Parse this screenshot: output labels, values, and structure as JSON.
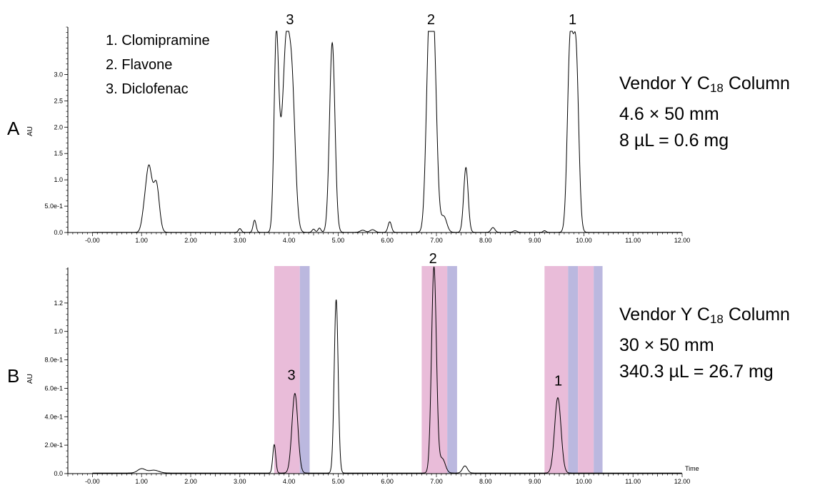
{
  "chart_data": [
    {
      "type": "line",
      "panel": "A",
      "ylabel": "AU",
      "xlim": [
        -0.5,
        12.0
      ],
      "ylim": [
        0.0,
        3.9
      ],
      "x_ticks": [
        "-0.00",
        "1.00",
        "2.00",
        "3.00",
        "4.00",
        "5.00",
        "6.00",
        "7.00",
        "8.00",
        "9.00",
        "10.00",
        "11.00",
        "12.00"
      ],
      "y_ticks": [
        {
          "value": 0.0,
          "label": "0.0"
        },
        {
          "value": 0.5,
          "label": "5.0e-1"
        },
        {
          "value": 1.0,
          "label": "1.0"
        },
        {
          "value": 1.5,
          "label": "1.5"
        },
        {
          "value": 2.0,
          "label": "2.0"
        },
        {
          "value": 2.5,
          "label": "2.5"
        },
        {
          "value": 3.0,
          "label": "3.0"
        }
      ],
      "peaks": [
        {
          "x": 1.05,
          "h": 0.3,
          "w": 0.05
        },
        {
          "x": 1.15,
          "h": 1.2,
          "w": 0.06
        },
        {
          "x": 1.3,
          "h": 0.92,
          "w": 0.06
        },
        {
          "x": 3.0,
          "h": 0.07,
          "w": 0.03
        },
        {
          "x": 3.3,
          "h": 0.23,
          "w": 0.03
        },
        {
          "x": 3.74,
          "h": 3.55,
          "w": 0.045
        },
        {
          "x": 3.82,
          "h": 1.0,
          "w": 0.05
        },
        {
          "x": 3.93,
          "h": 2.9,
          "w": 0.06
        },
        {
          "x": 4.05,
          "h": 3.0,
          "w": 0.07
        },
        {
          "x": 4.5,
          "h": 0.06,
          "w": 0.03
        },
        {
          "x": 4.62,
          "h": 0.08,
          "w": 0.03
        },
        {
          "x": 4.88,
          "h": 3.6,
          "w": 0.055
        },
        {
          "x": 5.5,
          "h": 0.04,
          "w": 0.05
        },
        {
          "x": 5.7,
          "h": 0.05,
          "w": 0.05
        },
        {
          "x": 6.05,
          "h": 0.2,
          "w": 0.035
        },
        {
          "x": 6.85,
          "h": 3.45,
          "w": 0.06
        },
        {
          "x": 6.95,
          "h": 3.2,
          "w": 0.06
        },
        {
          "x": 7.15,
          "h": 0.3,
          "w": 0.06
        },
        {
          "x": 7.6,
          "h": 1.23,
          "w": 0.045
        },
        {
          "x": 8.15,
          "h": 0.09,
          "w": 0.04
        },
        {
          "x": 8.6,
          "h": 0.03,
          "w": 0.04
        },
        {
          "x": 9.2,
          "h": 0.03,
          "w": 0.03
        },
        {
          "x": 9.72,
          "h": 3.5,
          "w": 0.055
        },
        {
          "x": 9.84,
          "h": 3.35,
          "w": 0.055
        }
      ],
      "clip_max": 3.82,
      "peak_labels": [
        {
          "text": "3",
          "x": 4.02
        },
        {
          "text": "2",
          "x": 6.89
        },
        {
          "text": "1",
          "x": 9.77
        }
      ]
    },
    {
      "type": "line",
      "panel": "B",
      "ylabel": "AU",
      "xlabel": "Time",
      "xlim": [
        -0.5,
        12.0
      ],
      "ylim": [
        0.0,
        1.45
      ],
      "x_ticks": [
        "-0.00",
        "1.00",
        "2.00",
        "3.00",
        "4.00",
        "5.00",
        "6.00",
        "7.00",
        "8.00",
        "9.00",
        "10.00",
        "11.00",
        "12.00"
      ],
      "y_ticks": [
        {
          "value": 0.0,
          "label": "0.0"
        },
        {
          "value": 0.2,
          "label": "2.0e-1"
        },
        {
          "value": 0.4,
          "label": "4.0e-1"
        },
        {
          "value": 0.6,
          "label": "6.0e-1"
        },
        {
          "value": 0.8,
          "label": "8.0e-1"
        },
        {
          "value": 1.0,
          "label": "1.0"
        },
        {
          "value": 1.2,
          "label": "1.2"
        }
      ],
      "fractions": [
        {
          "start": 3.7,
          "end": 4.22,
          "color": "#e9bcd9"
        },
        {
          "start": 4.22,
          "end": 4.42,
          "color": "#bbb8df"
        },
        {
          "start": 6.7,
          "end": 7.22,
          "color": "#e9bcd9"
        },
        {
          "start": 7.22,
          "end": 7.42,
          "color": "#bbb8df"
        },
        {
          "start": 9.2,
          "end": 9.68,
          "color": "#e9bcd9"
        },
        {
          "start": 9.68,
          "end": 9.88,
          "color": "#bbb8df"
        },
        {
          "start": 9.88,
          "end": 10.2,
          "color": "#e9bcd9"
        },
        {
          "start": 10.2,
          "end": 10.38,
          "color": "#bbb8df"
        }
      ],
      "peaks": [
        {
          "x": 1.0,
          "h": 0.03,
          "w": 0.08
        },
        {
          "x": 1.25,
          "h": 0.02,
          "w": 0.1
        },
        {
          "x": 3.7,
          "h": 0.2,
          "w": 0.03
        },
        {
          "x": 4.12,
          "h": 0.56,
          "w": 0.06
        },
        {
          "x": 4.96,
          "h": 1.22,
          "w": 0.04
        },
        {
          "x": 6.95,
          "h": 1.45,
          "w": 0.05
        },
        {
          "x": 7.12,
          "h": 0.1,
          "w": 0.06
        },
        {
          "x": 7.58,
          "h": 0.05,
          "w": 0.05
        },
        {
          "x": 9.47,
          "h": 0.53,
          "w": 0.065
        }
      ],
      "clip_max": 1.48,
      "peak_labels": [
        {
          "text": "3",
          "x": 4.05,
          "y": 0.63
        },
        {
          "text": "2",
          "x": 6.93,
          "y": 1.45
        },
        {
          "text": "1",
          "x": 9.48,
          "y": 0.59
        }
      ]
    }
  ],
  "panels": {
    "a": {
      "letter": "A",
      "au": "AU",
      "legend": [
        "1. Clomipramine",
        "2. Flavone",
        "3. Diclofenac"
      ],
      "column_prefix": "Vendor Y C",
      "column_sub": "18",
      "column_suffix": " Column",
      "dims": "4.6 × 50 mm",
      "load": "8 µL = 0.6 mg"
    },
    "b": {
      "letter": "B",
      "au": "AU",
      "column_prefix": "Vendor Y C",
      "column_sub": "18",
      "column_suffix": " Column",
      "dims": "30 × 50 mm",
      "load": "340.3 µL = 26.7 mg"
    }
  },
  "colors": {
    "trace": "#000000",
    "fraction_pink": "#e9bcd9",
    "fraction_blue": "#bbb8df"
  }
}
